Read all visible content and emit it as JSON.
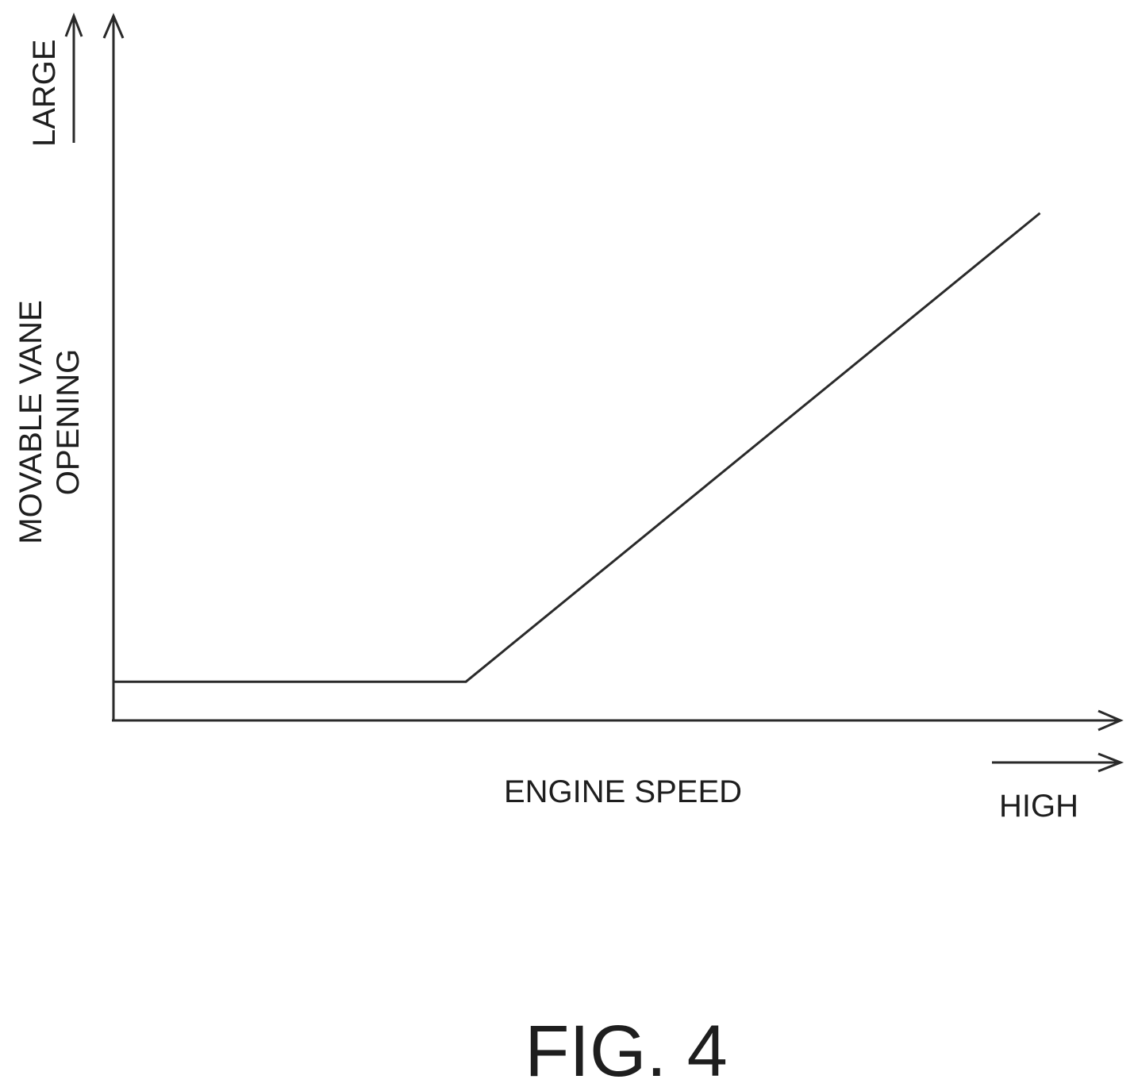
{
  "figure": {
    "caption": "FIG. 4"
  },
  "chart_data": {
    "type": "line",
    "title": "",
    "xlabel": "ENGINE SPEED",
    "ylabel_line1": "MOVABLE VANE",
    "ylabel_line2": "OPENING",
    "x_direction_label": "HIGH",
    "y_direction_label": "LARGE",
    "tick_labels": "none",
    "grid": false,
    "legend": "none",
    "series": [
      {
        "x": [
          0.0,
          0.35,
          0.92
        ],
        "y": [
          0.055,
          0.055,
          0.72
        ]
      }
    ],
    "xlim": [
      0,
      1
    ],
    "ylim": [
      0,
      1
    ],
    "line_color": "#2a2a2a"
  }
}
